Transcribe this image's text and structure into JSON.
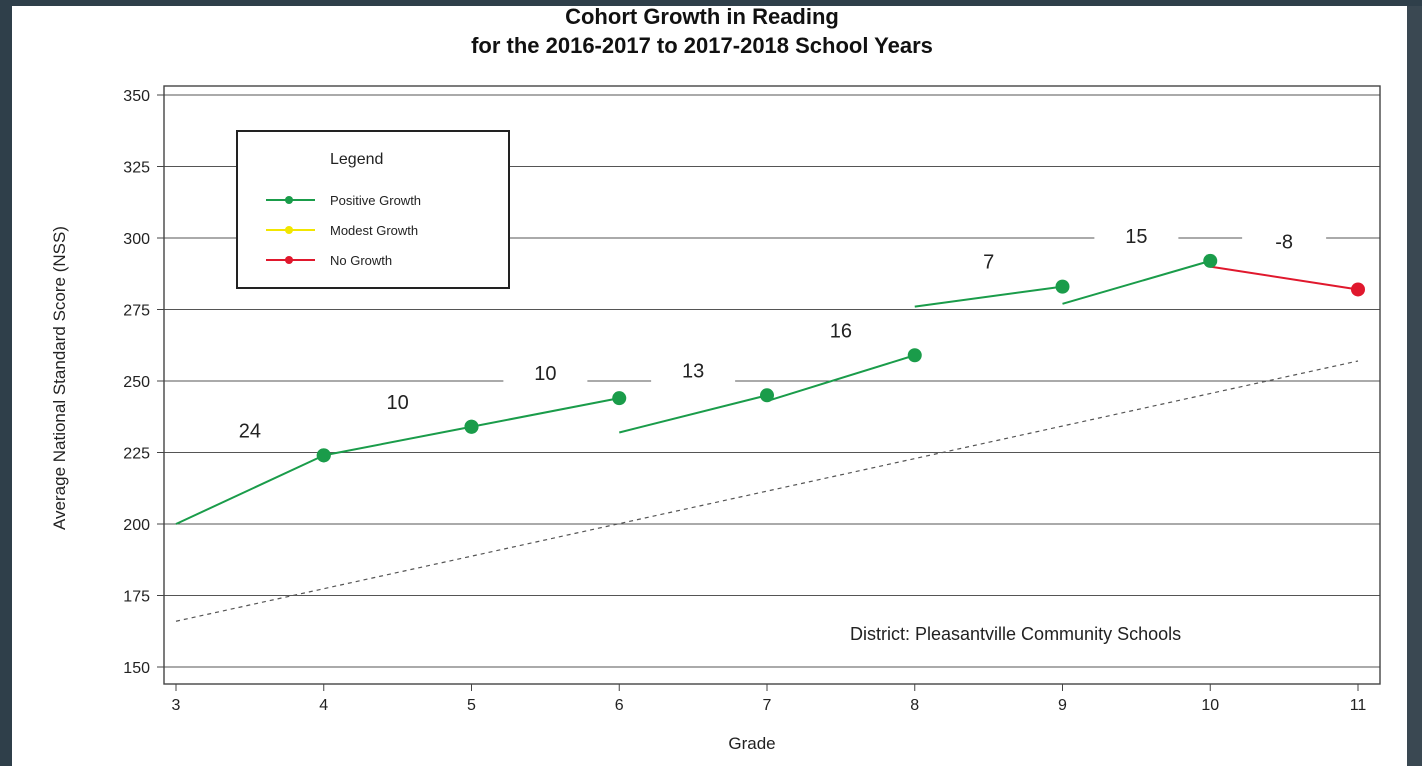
{
  "chart_data": {
    "type": "line",
    "title_line1": "Cohort Growth in Reading",
    "title_line2": "for the 2016-2017 to 2017-2018 School Years",
    "xlabel": "Grade",
    "ylabel": "Average National Standard Score (NSS)",
    "x_ticks": [
      3,
      4,
      5,
      6,
      7,
      8,
      9,
      10,
      11
    ],
    "y_ticks": [
      150,
      175,
      200,
      225,
      250,
      275,
      300,
      325,
      350
    ],
    "xlim": [
      3,
      11
    ],
    "ylim": [
      150,
      350
    ],
    "grid_y": true,
    "legend": {
      "title": "Legend",
      "position": "top-left",
      "items": [
        {
          "label": "Positive Growth",
          "color": "#1a9c4a"
        },
        {
          "label": "Modest Growth",
          "color": "#f2e600"
        },
        {
          "label": "No Growth",
          "color": "#e0182d"
        }
      ]
    },
    "segments": [
      {
        "from": [
          3,
          200
        ],
        "to": [
          4,
          224
        ],
        "growth": "24",
        "status": "positive",
        "start_marker": false
      },
      {
        "from": [
          4,
          224
        ],
        "to": [
          5,
          234
        ],
        "growth": "10",
        "status": "positive",
        "start_marker": true
      },
      {
        "from": [
          5,
          234
        ],
        "to": [
          6,
          244
        ],
        "growth": "10",
        "status": "positive",
        "start_marker": true
      },
      {
        "from": [
          6,
          232
        ],
        "to": [
          7,
          245
        ],
        "growth": "13",
        "status": "positive",
        "start_marker": false
      },
      {
        "from": [
          7,
          243
        ],
        "to": [
          8,
          259
        ],
        "growth": "16",
        "status": "positive",
        "start_marker": false
      },
      {
        "from": [
          8,
          276
        ],
        "to": [
          9,
          283
        ],
        "growth": "7",
        "status": "positive",
        "start_marker": false
      },
      {
        "from": [
          9,
          277
        ],
        "to": [
          10,
          292
        ],
        "growth": "15",
        "status": "positive",
        "start_marker": false
      },
      {
        "from": [
          10,
          290
        ],
        "to": [
          11,
          282
        ],
        "growth": "-8",
        "status": "none",
        "start_marker": false
      }
    ],
    "reference_line": {
      "style": "dotted",
      "from": [
        3,
        166
      ],
      "to": [
        11,
        257
      ]
    },
    "annotation": "District: Pleasantville Community Schools"
  }
}
